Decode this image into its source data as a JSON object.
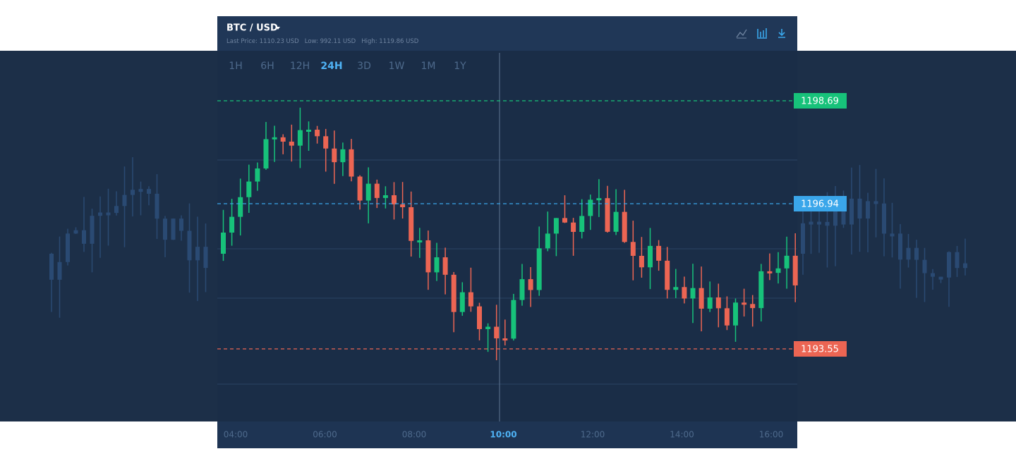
{
  "header": {
    "pair": "BTC / USD",
    "last_price": "Last Price: 1110.23 USD",
    "low": "Low: 992.11 USD",
    "high": "High: 1119.86 USD"
  },
  "timeframes": {
    "options": [
      "1H",
      "6H",
      "12H",
      "24H",
      "3D",
      "1W",
      "1M",
      "1Y"
    ],
    "active_index": 3
  },
  "price_levels": [
    {
      "value": 1198.69,
      "color": "#17c27a"
    },
    {
      "value": 1196.94,
      "color": "#3aa6ea"
    },
    {
      "value": 1193.55,
      "color": "#ec6553"
    }
  ],
  "time_axis": {
    "labels": [
      "04:00",
      "06:00",
      "08:00",
      "10:00",
      "12:00",
      "14:00",
      "16:00"
    ],
    "active_index": 3
  }
}
